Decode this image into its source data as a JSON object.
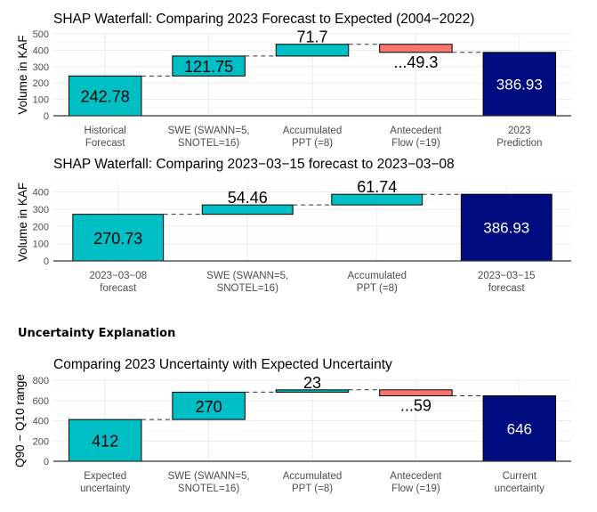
{
  "section_heading": "Uncertainty Explanation",
  "colors": {
    "positive": "#00BFC4",
    "negative": "#F8766D",
    "total": "#000C80"
  },
  "chart_data": [
    {
      "type": "waterfall",
      "title": "SHAP Waterfall: Comparing 2023 Forecast to Expected (2004−2022)",
      "xlabel": "",
      "ylabel": "Volume in KAF",
      "ylim": [
        0,
        500
      ],
      "yticks": [
        0,
        100,
        200,
        300,
        400,
        500
      ],
      "grid": true,
      "categories": [
        [
          "Historical",
          "Forecast"
        ],
        [
          "SWE (SWANN=5,",
          "SNOTEL=16)"
        ],
        [
          "Accumulated",
          "PPT (=8)"
        ],
        [
          "Antecedent",
          "Flow (=19)"
        ],
        [
          "2023",
          "Prediction"
        ]
      ],
      "values": [
        242.78,
        121.75,
        71.7,
        -49.3,
        386.93
      ],
      "kinds": [
        "base",
        "delta",
        "delta",
        "delta",
        "total"
      ],
      "labels": [
        "242.78",
        "121.75",
        "71.7",
        "...49.3",
        "386.93"
      ]
    },
    {
      "type": "waterfall",
      "title": "SHAP Waterfall: Comparing 2023−03−15 forecast to 2023−03−08",
      "xlabel": "",
      "ylabel": "Volume in KAF",
      "ylim": [
        0,
        450
      ],
      "yticks": [
        0,
        100,
        200,
        300,
        400
      ],
      "grid": true,
      "categories": [
        [
          "2023−03−08",
          "forecast"
        ],
        [
          "SWE (SWANN=5,",
          "SNOTEL=16)"
        ],
        [
          "Accumulated",
          "PPT (=8)"
        ],
        [
          "2023−03−15",
          "forecast"
        ]
      ],
      "values": [
        270.73,
        54.46,
        61.74,
        386.93
      ],
      "kinds": [
        "base",
        "delta",
        "delta",
        "total"
      ],
      "labels": [
        "270.73",
        "54.46",
        "61.74",
        "386.93"
      ]
    },
    {
      "type": "waterfall",
      "title": "Comparing 2023 Uncertainty with Expected Uncertainty",
      "xlabel": "",
      "ylabel": "Q90 − Q10 range",
      "ylim": [
        0,
        800
      ],
      "yticks": [
        0,
        200,
        400,
        600,
        800
      ],
      "grid": true,
      "categories": [
        [
          "Expected",
          "uncertainty"
        ],
        [
          "SWE (SWANN=5,",
          "SNOTEL=16)"
        ],
        [
          "Accumulated",
          "PPT (=8)"
        ],
        [
          "Antecedent",
          "Flow (=19)"
        ],
        [
          "Current",
          "uncertainty"
        ]
      ],
      "values": [
        412,
        270,
        23,
        -59,
        646
      ],
      "kinds": [
        "base",
        "delta",
        "delta",
        "delta",
        "total"
      ],
      "labels": [
        "412",
        "270",
        "23",
        "...59",
        "646"
      ]
    }
  ]
}
